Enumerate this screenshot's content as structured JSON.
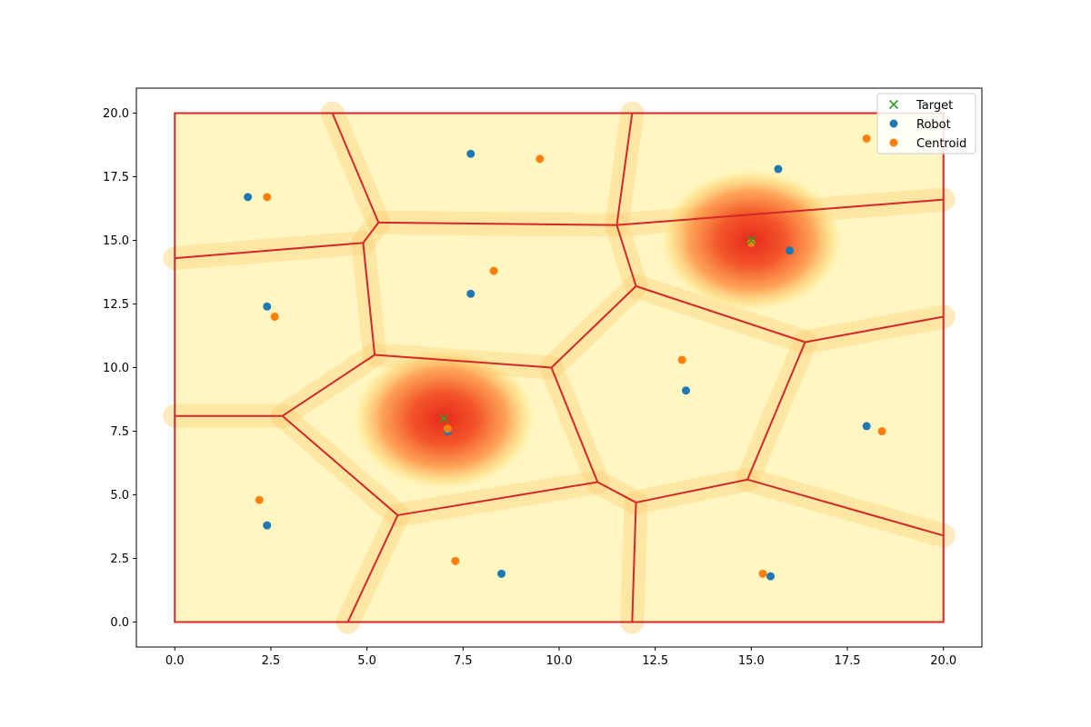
{
  "chart_data": {
    "type": "scatter",
    "title": "",
    "xlabel": "",
    "ylabel": "",
    "xlim": [
      -1.0,
      21.0
    ],
    "ylim": [
      -0.98,
      20.98
    ],
    "xticks": [
      0.0,
      2.5,
      5.0,
      7.5,
      10.0,
      12.5,
      15.0,
      17.5,
      20.0
    ],
    "yticks": [
      0.0,
      2.5,
      5.0,
      7.5,
      10.0,
      12.5,
      15.0,
      17.5,
      20.0
    ],
    "xtick_labels": [
      "0.0",
      "2.5",
      "5.0",
      "7.5",
      "10.0",
      "12.5",
      "15.0",
      "17.5",
      "20.0"
    ],
    "ytick_labels": [
      "0.0",
      "2.5",
      "5.0",
      "7.5",
      "10.0",
      "12.5",
      "15.0",
      "17.5",
      "20.0"
    ],
    "grid": false,
    "legend_position": "top-right",
    "series": [
      {
        "name": "Target",
        "marker": "x",
        "color": "#2ca02c",
        "points": [
          [
            7.0,
            8.0
          ],
          [
            15.0,
            15.0
          ]
        ]
      },
      {
        "name": "Robot",
        "marker": "o",
        "color": "#1f77b4",
        "points": [
          [
            1.9,
            16.7
          ],
          [
            7.7,
            18.4
          ],
          [
            15.7,
            17.8
          ],
          [
            16.0,
            14.6
          ],
          [
            2.4,
            12.4
          ],
          [
            7.7,
            12.9
          ],
          [
            13.3,
            9.1
          ],
          [
            7.1,
            7.5
          ],
          [
            18.0,
            7.7
          ],
          [
            2.4,
            3.8
          ],
          [
            8.5,
            1.9
          ],
          [
            15.5,
            1.8
          ]
        ]
      },
      {
        "name": "Centroid",
        "marker": "o",
        "color": "#ff7f0e",
        "points": [
          [
            2.4,
            16.7
          ],
          [
            9.5,
            18.2
          ],
          [
            18.0,
            19.0
          ],
          [
            15.0,
            14.9
          ],
          [
            2.6,
            12.0
          ],
          [
            8.3,
            13.8
          ],
          [
            13.2,
            10.3
          ],
          [
            7.1,
            7.6
          ],
          [
            18.4,
            7.5
          ],
          [
            2.2,
            4.8
          ],
          [
            7.3,
            2.4
          ],
          [
            15.3,
            1.9
          ]
        ]
      }
    ],
    "voronoi_edges": [
      [
        [
          4.1,
          20.0
        ],
        [
          5.3,
          15.7
        ]
      ],
      [
        [
          5.3,
          15.7
        ],
        [
          11.5,
          15.6
        ]
      ],
      [
        [
          11.9,
          20.0
        ],
        [
          11.5,
          15.6
        ]
      ],
      [
        [
          11.5,
          15.6
        ],
        [
          20.0,
          16.6
        ]
      ],
      [
        [
          0.0,
          14.3
        ],
        [
          4.9,
          14.9
        ]
      ],
      [
        [
          4.9,
          14.9
        ],
        [
          5.3,
          15.7
        ]
      ],
      [
        [
          4.9,
          14.9
        ],
        [
          5.2,
          10.5
        ]
      ],
      [
        [
          11.5,
          15.6
        ],
        [
          12.0,
          13.2
        ]
      ],
      [
        [
          12.0,
          13.2
        ],
        [
          16.4,
          11.0
        ]
      ],
      [
        [
          16.4,
          11.0
        ],
        [
          20.0,
          12.0
        ]
      ],
      [
        [
          12.0,
          13.2
        ],
        [
          9.8,
          10.0
        ]
      ],
      [
        [
          5.2,
          10.5
        ],
        [
          9.8,
          10.0
        ]
      ],
      [
        [
          5.2,
          10.5
        ],
        [
          2.8,
          8.1
        ]
      ],
      [
        [
          0.0,
          8.1
        ],
        [
          2.8,
          8.1
        ]
      ],
      [
        [
          2.8,
          8.1
        ],
        [
          5.8,
          4.2
        ]
      ],
      [
        [
          5.8,
          4.2
        ],
        [
          11.0,
          5.5
        ]
      ],
      [
        [
          9.8,
          10.0
        ],
        [
          11.0,
          5.5
        ]
      ],
      [
        [
          11.0,
          5.5
        ],
        [
          12.0,
          4.7
        ]
      ],
      [
        [
          12.0,
          4.7
        ],
        [
          14.9,
          5.6
        ]
      ],
      [
        [
          14.9,
          5.6
        ],
        [
          16.4,
          11.0
        ]
      ],
      [
        [
          14.9,
          5.6
        ],
        [
          20.0,
          3.4
        ]
      ],
      [
        [
          12.0,
          4.7
        ],
        [
          11.9,
          0.0
        ]
      ],
      [
        [
          5.8,
          4.2
        ],
        [
          4.5,
          0.0
        ]
      ]
    ],
    "boundary": [
      [
        0,
        0
      ],
      [
        20,
        0
      ],
      [
        20,
        20
      ],
      [
        0,
        20
      ]
    ],
    "density_centers": [
      [
        7.0,
        8.0
      ],
      [
        15.0,
        15.0
      ]
    ]
  }
}
